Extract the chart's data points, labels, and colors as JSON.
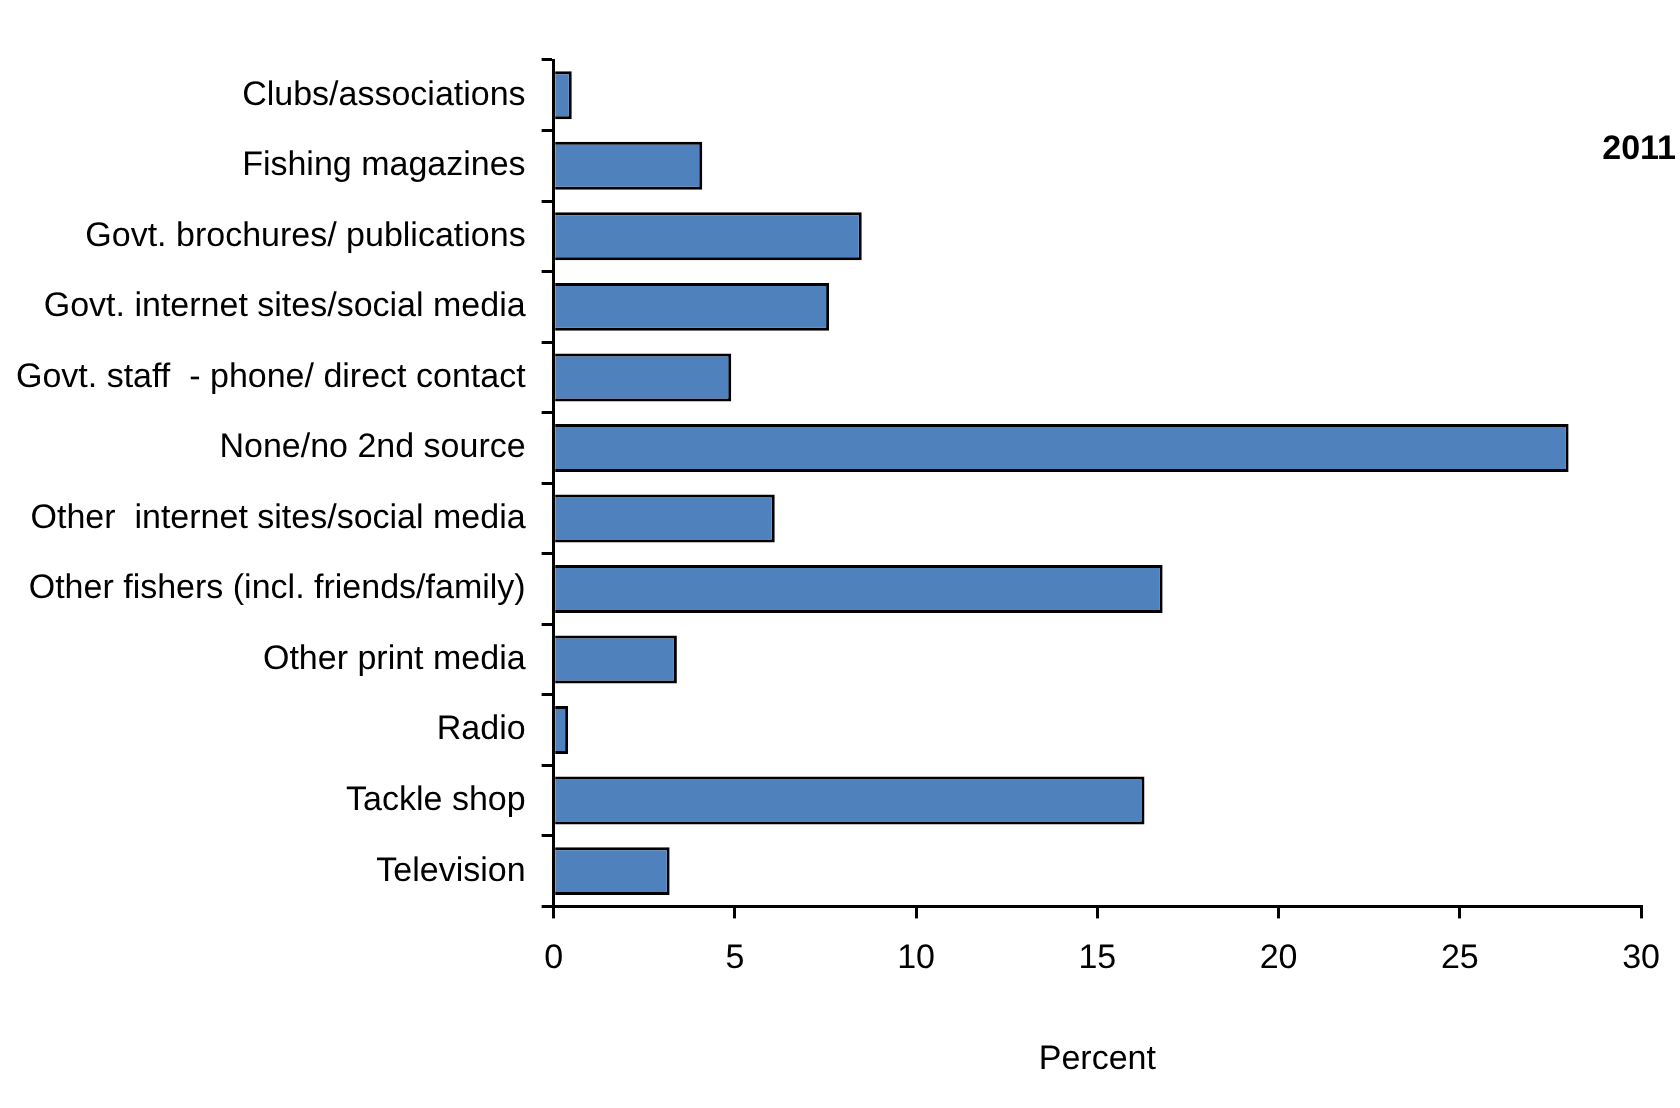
{
  "chart_data": {
    "type": "bar",
    "orientation": "horizontal",
    "xlabel": "Percent",
    "categories": [
      "Clubs/associations",
      "Fishing magazines",
      "Govt. brochures/ publications",
      "Govt. internet sites/social media",
      "Govt. staff  - phone/ direct contact",
      "None/no 2nd source",
      "Other  internet sites/social media",
      "Other fishers (incl. friends/family)",
      "Other print media",
      "Radio",
      "Tackle shop",
      "Television"
    ],
    "values": [
      0.5,
      4.1,
      8.5,
      7.6,
      4.9,
      28.0,
      6.1,
      16.8,
      3.4,
      0.4,
      16.3,
      3.2
    ],
    "color": "#4f81bd",
    "xlim": [
      0,
      30
    ],
    "xticks": [
      0,
      5,
      10,
      15,
      20,
      25,
      30
    ],
    "grid": false,
    "legend": false,
    "annotations": [
      "2011"
    ]
  }
}
